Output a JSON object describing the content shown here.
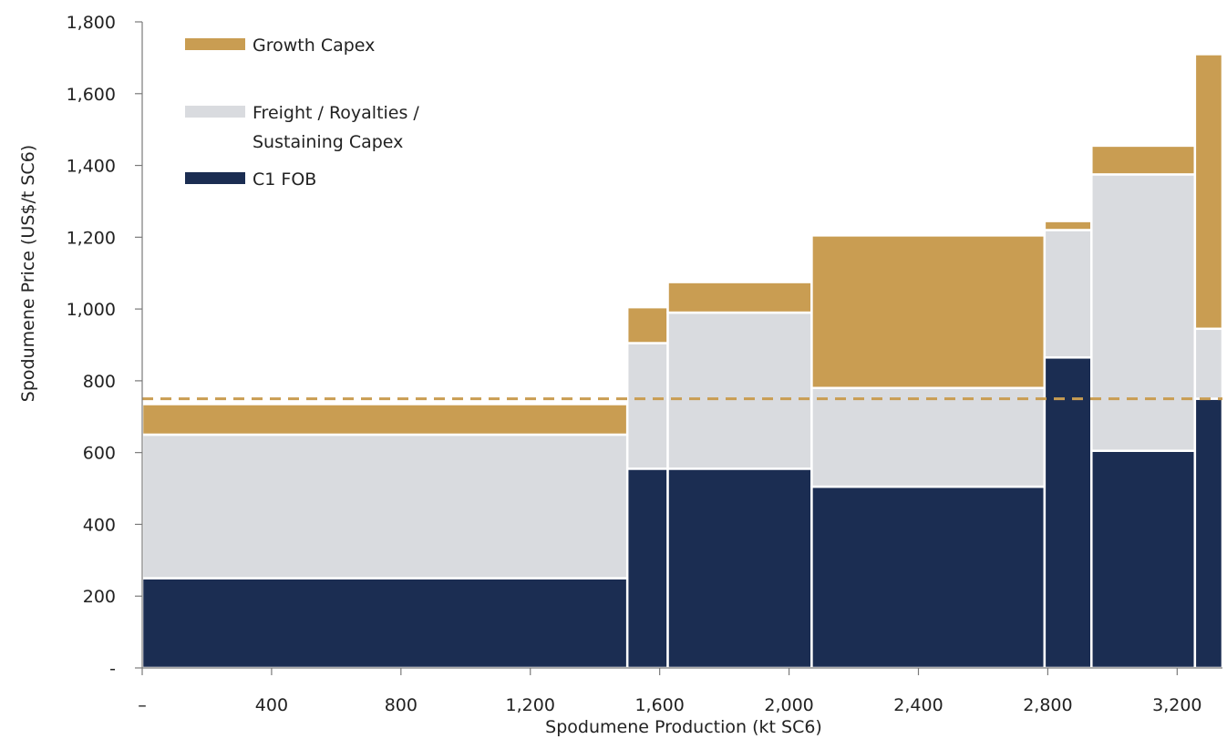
{
  "chart_data": {
    "type": "bar",
    "subtype": "cost-curve",
    "xlabel": "Spodumene Production (kt SC6)",
    "ylabel": "Spodumene Price (US$/t SC6)",
    "xlim": [
      0,
      3340
    ],
    "ylim": [
      0,
      1800
    ],
    "x_ticks": [
      {
        "value": 0,
        "label": "–"
      },
      {
        "value": 400,
        "label": "400"
      },
      {
        "value": 800,
        "label": "800"
      },
      {
        "value": 1200,
        "label": "1,200"
      },
      {
        "value": 1600,
        "label": "1,600"
      },
      {
        "value": 2000,
        "label": "2,000"
      },
      {
        "value": 2400,
        "label": "2,400"
      },
      {
        "value": 2800,
        "label": "2,800"
      },
      {
        "value": 3200,
        "label": "3,200"
      }
    ],
    "y_ticks": [
      {
        "value": 0,
        "label": "-"
      },
      {
        "value": 200,
        "label": "200"
      },
      {
        "value": 400,
        "label": "400"
      },
      {
        "value": 600,
        "label": "600"
      },
      {
        "value": 800,
        "label": "800"
      },
      {
        "value": 1000,
        "label": "1,000"
      },
      {
        "value": 1200,
        "label": "1,200"
      },
      {
        "value": 1400,
        "label": "1,400"
      },
      {
        "value": 1600,
        "label": "1,600"
      },
      {
        "value": 1800,
        "label": "1,800"
      }
    ],
    "series": [
      {
        "name": "C1 FOB",
        "color": "#1b2d52"
      },
      {
        "name": "Freight / Royalties / Sustaining Capex",
        "color": "#d9dbdf"
      },
      {
        "name": "Growth Capex",
        "color": "#c99d52"
      }
    ],
    "legend": {
      "position": "top-left",
      "entries": [
        {
          "lines": [
            "Growth Capex"
          ],
          "color": "#c99d52"
        },
        {
          "lines": [
            "Freight / Royalties /",
            "Sustaining Capex"
          ],
          "color": "#d9dbdf"
        },
        {
          "lines": [
            "C1 FOB"
          ],
          "color": "#1b2d52"
        }
      ]
    },
    "bars": [
      {
        "x_start": 0,
        "x_end": 1500,
        "c1_fob": 250,
        "freight_royalties_sustaining": 400,
        "growth_capex": 85
      },
      {
        "x_start": 1500,
        "x_end": 1625,
        "c1_fob": 555,
        "freight_royalties_sustaining": 350,
        "growth_capex": 100
      },
      {
        "x_start": 1625,
        "x_end": 2070,
        "c1_fob": 555,
        "freight_royalties_sustaining": 435,
        "growth_capex": 85
      },
      {
        "x_start": 2070,
        "x_end": 2790,
        "c1_fob": 505,
        "freight_royalties_sustaining": 275,
        "growth_capex": 425
      },
      {
        "x_start": 2790,
        "x_end": 2935,
        "c1_fob": 865,
        "freight_royalties_sustaining": 355,
        "growth_capex": 25
      },
      {
        "x_start": 2935,
        "x_end": 3255,
        "c1_fob": 605,
        "freight_royalties_sustaining": 770,
        "growth_capex": 80
      },
      {
        "x_start": 3255,
        "x_end": 3340,
        "c1_fob": 750,
        "freight_royalties_sustaining": 195,
        "growth_capex": 765
      }
    ],
    "reference_line": {
      "value": 750,
      "color": "#c99d52",
      "style": "dashed"
    },
    "grid": false
  }
}
